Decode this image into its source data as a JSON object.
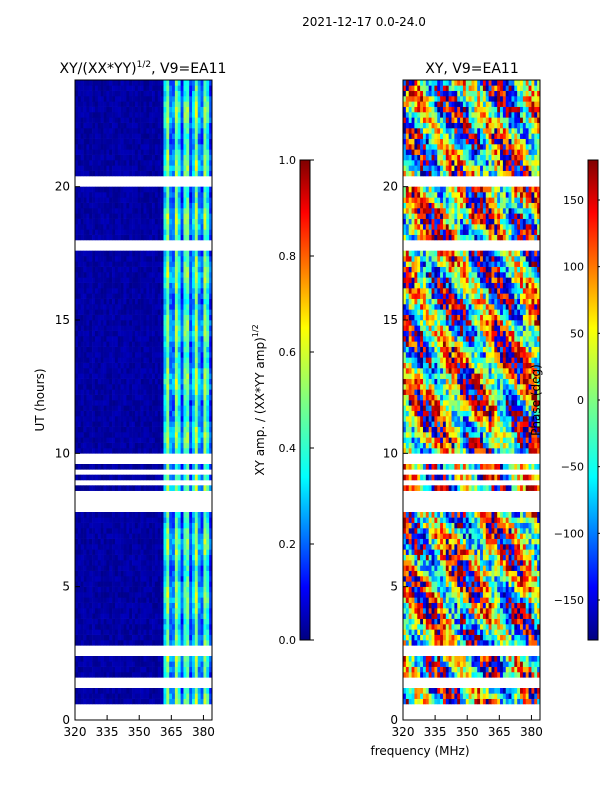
{
  "suptitle": "2021-12-17 0.0-24.0",
  "shared_xlabel": "frequency (MHz)",
  "chart_data": [
    {
      "type": "heatmap",
      "title": "XY/(XX*YY)",
      "title_exponent": "1/2",
      "title_suffix": ", V9=EA11",
      "xlabel": "",
      "ylabel": "UT (hours)",
      "xlim": [
        320,
        384
      ],
      "ylim": [
        0,
        24
      ],
      "x_ticks": [
        320,
        335,
        350,
        365,
        380
      ],
      "y_ticks": [
        0,
        5,
        10,
        15,
        20
      ],
      "colorbar": {
        "label": "XY amp. / (XX*YY amp)",
        "label_exponent": "1/2",
        "range": [
          0.0,
          1.0
        ],
        "ticks": [
          "0.0",
          "0.2",
          "0.4",
          "0.6",
          "0.8",
          "1.0"
        ],
        "tick_values": [
          0.0,
          0.2,
          0.4,
          0.6,
          0.8,
          1.0
        ]
      },
      "description_values": {
        "low_amplitude_band_mhz": [
          320,
          362
        ],
        "high_amplitude_band_mhz": [
          362,
          384
        ],
        "typical_low_value": 0.02,
        "typical_high_value": 0.45
      },
      "blank_time_ranges_hours": [
        [
          0.0,
          0.5
        ],
        [
          1.3,
          1.6
        ],
        [
          2.5,
          2.8
        ],
        [
          7.8,
          8.0
        ],
        [
          8.1,
          8.6
        ],
        [
          8.8,
          9.0
        ],
        [
          9.2,
          9.4
        ],
        [
          9.6,
          10.0
        ],
        [
          17.6,
          18.0
        ],
        [
          20.0,
          20.3
        ]
      ]
    },
    {
      "type": "heatmap",
      "title": "XY, V9=EA11",
      "xlabel": "",
      "ylabel": "",
      "xlim": [
        320,
        384
      ],
      "ylim": [
        0,
        24
      ],
      "x_ticks": [
        320,
        335,
        350,
        365,
        380
      ],
      "y_ticks": [
        0,
        5,
        10,
        15,
        20
      ],
      "colorbar": {
        "label": "Phase (deg)",
        "range": [
          -180,
          180
        ],
        "ticks": [
          "150",
          "100",
          "50",
          "0",
          "−50",
          "−100",
          "−150"
        ],
        "tick_values": [
          150,
          100,
          50,
          0,
          -50,
          -100,
          -150
        ]
      },
      "blank_time_ranges_hours": [
        [
          0.0,
          0.5
        ],
        [
          1.3,
          1.6
        ],
        [
          2.5,
          2.8
        ],
        [
          7.8,
          8.0
        ],
        [
          8.1,
          8.6
        ],
        [
          8.8,
          9.0
        ],
        [
          9.2,
          9.4
        ],
        [
          9.6,
          10.0
        ],
        [
          17.6,
          18.0
        ],
        [
          20.0,
          20.3
        ]
      ]
    }
  ],
  "colors": {
    "background": "#ffffff",
    "axis": "#000000",
    "jet_stops": [
      "#000080",
      "#0000ff",
      "#0080ff",
      "#00ffff",
      "#80ff80",
      "#ffff00",
      "#ff8000",
      "#ff0000",
      "#800000"
    ]
  }
}
